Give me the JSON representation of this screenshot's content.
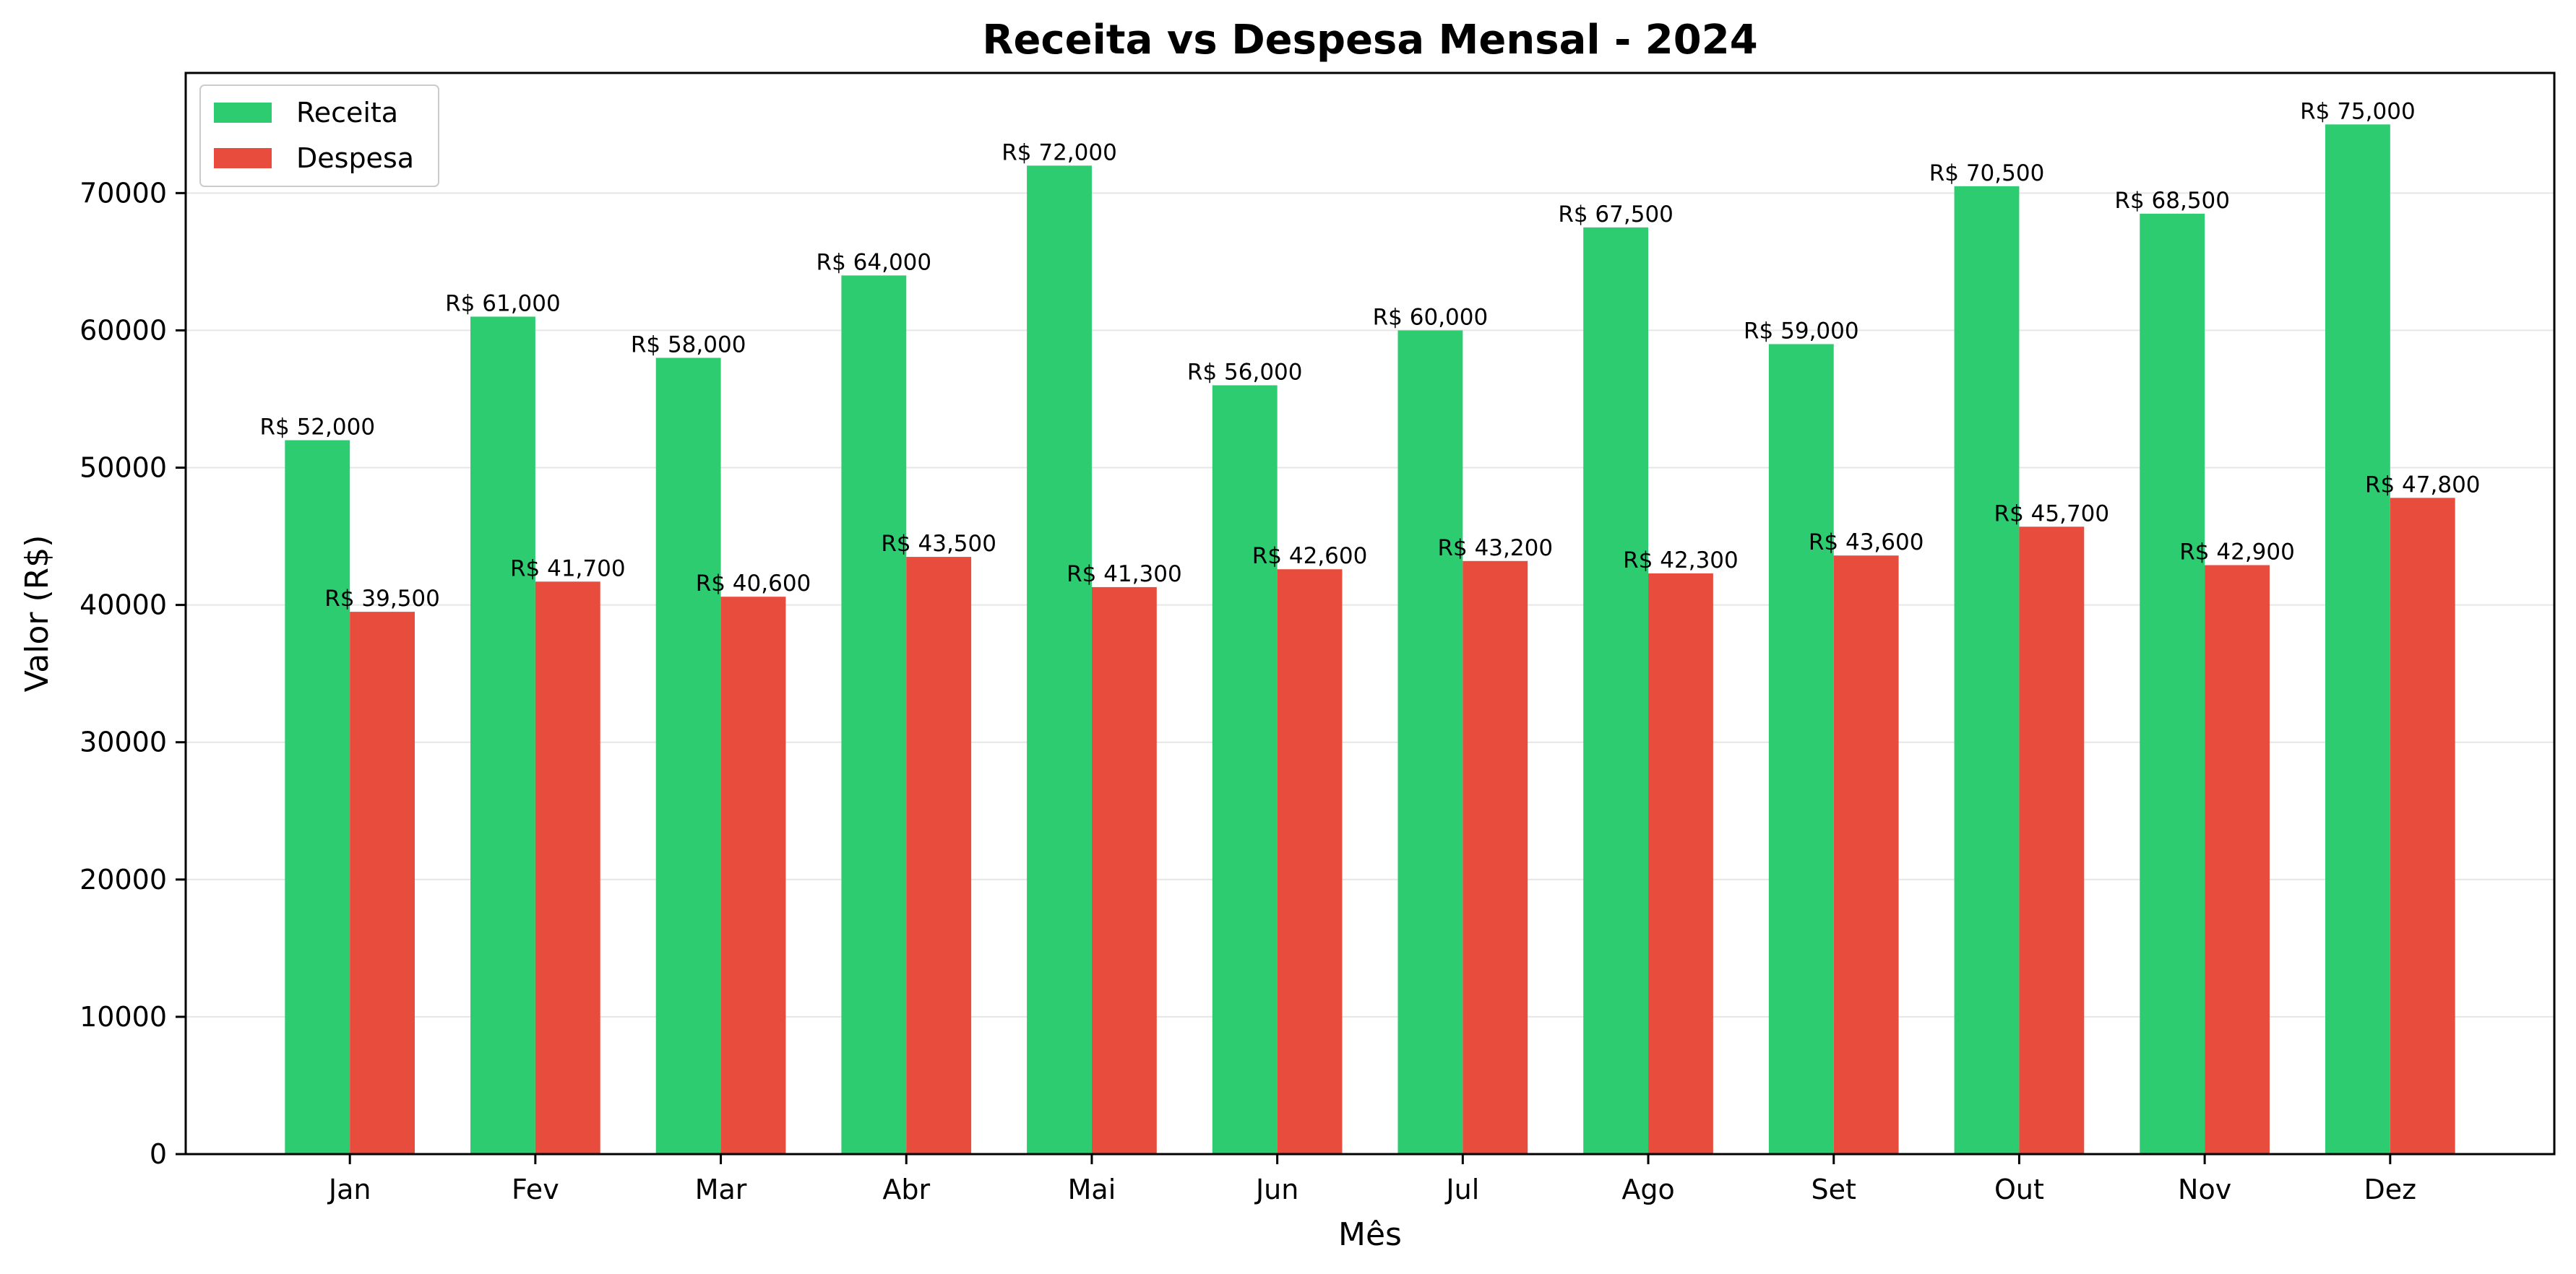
{
  "chart_data": {
    "type": "bar",
    "title": "Receita vs Despesa Mensal - 2024",
    "xlabel": "Mês",
    "ylabel": "Valor (R$)",
    "categories": [
      "Jan",
      "Fev",
      "Mar",
      "Abr",
      "Mai",
      "Jun",
      "Jul",
      "Ago",
      "Set",
      "Out",
      "Nov",
      "Dez"
    ],
    "series": [
      {
        "name": "Receita",
        "color": "#2ecc71",
        "values": [
          52000,
          61000,
          58000,
          64000,
          72000,
          56000,
          60000,
          67500,
          59000,
          70500,
          68500,
          75000
        ],
        "labels": [
          "R$ 52,000",
          "R$ 61,000",
          "R$ 58,000",
          "R$ 64,000",
          "R$ 72,000",
          "R$ 56,000",
          "R$ 60,000",
          "R$ 67,500",
          "R$ 59,000",
          "R$ 70,500",
          "R$ 68,500",
          "R$ 75,000"
        ]
      },
      {
        "name": "Despesa",
        "color": "#e74c3c",
        "values": [
          39500,
          41700,
          40600,
          43500,
          41300,
          42600,
          43200,
          42300,
          43600,
          45700,
          42900,
          47800
        ],
        "labels": [
          "R$ 39,500",
          "R$ 41,700",
          "R$ 40,600",
          "R$ 43,500",
          "R$ 41,300",
          "R$ 42,600",
          "R$ 43,200",
          "R$ 42,300",
          "R$ 43,600",
          "R$ 45,700",
          "R$ 42,900",
          "R$ 47,800"
        ]
      }
    ],
    "ylim": [
      0,
      78750
    ],
    "yticks": [
      0,
      10000,
      20000,
      30000,
      40000,
      50000,
      60000,
      70000
    ],
    "ytick_labels": [
      "0",
      "10000",
      "20000",
      "30000",
      "40000",
      "50000",
      "60000",
      "70000"
    ],
    "grid": "horizontal",
    "legend_position": "top-left"
  }
}
